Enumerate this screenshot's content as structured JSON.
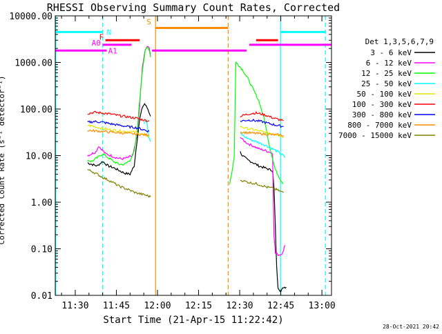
{
  "chart_data": {
    "type": "line",
    "title": "RHESSI Observing Summary Count Rates, Corrected",
    "xlabel": "Start Time (21-Apr-15 11:22:42)",
    "ylabel": "Corrected Count Rate (s⁻¹ detector⁻¹)",
    "x_unit": "minutes after 11:00",
    "xlim": [
      22.7,
      123.5
    ],
    "ylim": [
      0.01,
      10000
    ],
    "y_scale": "log",
    "x_ticks": [
      {
        "v": 30,
        "label": "11:30"
      },
      {
        "v": 45,
        "label": "11:45"
      },
      {
        "v": 60,
        "label": "12:00"
      },
      {
        "v": 75,
        "label": "12:15"
      },
      {
        "v": 90,
        "label": "12:30"
      },
      {
        "v": 105,
        "label": "12:45"
      },
      {
        "v": 120,
        "label": "13:00"
      }
    ],
    "y_ticks": [
      {
        "v": 10000,
        "label": "10000.00"
      },
      {
        "v": 1000,
        "label": "1000.00"
      },
      {
        "v": 100,
        "label": "100.00"
      },
      {
        "v": 10,
        "label": "10.00"
      },
      {
        "v": 1,
        "label": "1.00"
      },
      {
        "v": 0.1,
        "label": "0.10"
      },
      {
        "v": 0.01,
        "label": "0.01"
      }
    ],
    "legend": {
      "position": "right",
      "header": "Det 1,3,5,6,7,9"
    },
    "series": [
      {
        "name": "3 - 6 keV",
        "color": "#000000",
        "segments": [
          [
            [
              34.5,
              7
            ],
            [
              36,
              6.5
            ],
            [
              38,
              6
            ],
            [
              40,
              7.5
            ],
            [
              42,
              6
            ],
            [
              44,
              5.5
            ],
            [
              46,
              4.8
            ],
            [
              48,
              4.2
            ],
            [
              50,
              4
            ],
            [
              51.5,
              6
            ],
            [
              52.5,
              20
            ],
            [
              53.5,
              60
            ],
            [
              54.5,
              110
            ],
            [
              55.3,
              130
            ],
            [
              56.5,
              100
            ],
            [
              57.5,
              70
            ]
          ],
          [
            [
              90.2,
              12
            ],
            [
              91,
              10
            ],
            [
              93,
              8
            ],
            [
              95,
              7
            ],
            [
              97,
              6
            ],
            [
              99,
              5.5
            ],
            [
              101,
              5
            ],
            [
              102,
              4.8
            ],
            [
              102.5,
              2
            ],
            [
              103,
              0.3
            ],
            [
              103.5,
              0.04
            ],
            [
              104,
              0.015
            ],
            [
              105,
              0.012
            ],
            [
              106,
              0.015
            ],
            [
              107,
              0.015
            ]
          ]
        ]
      },
      {
        "name": "6 - 12 keV",
        "color": "#ff00ff",
        "segments": [
          [
            [
              34.5,
              10
            ],
            [
              36,
              11
            ],
            [
              37.5,
              12
            ],
            [
              38.5,
              16
            ],
            [
              39.5,
              14
            ],
            [
              41,
              11
            ],
            [
              43,
              10
            ],
            [
              45,
              9
            ],
            [
              47,
              8.5
            ],
            [
              49,
              9
            ],
            [
              51,
              10
            ],
            [
              52.5,
              25
            ],
            [
              53.5,
              120
            ],
            [
              54.5,
              800
            ],
            [
              55.5,
              1800
            ],
            [
              56.2,
              2200
            ],
            [
              57,
              2000
            ],
            [
              57.5,
              1500
            ]
          ],
          [
            [
              90.2,
              25
            ],
            [
              91,
              22
            ],
            [
              93,
              18
            ],
            [
              95,
              16
            ],
            [
              97,
              14
            ],
            [
              99,
              13
            ],
            [
              101,
              12
            ],
            [
              102,
              11
            ],
            [
              102.5,
              0.2
            ],
            [
              103,
              0.08
            ],
            [
              104,
              0.075
            ],
            [
              105,
              0.075
            ],
            [
              106,
              0.09
            ],
            [
              106.5,
              0.12
            ]
          ]
        ]
      },
      {
        "name": "12 - 25 keV",
        "color": "#00ff00",
        "segments": [
          [
            [
              34.5,
              8
            ],
            [
              36,
              7.5
            ],
            [
              38,
              9
            ],
            [
              40,
              11
            ],
            [
              42,
              9
            ],
            [
              44,
              7.5
            ],
            [
              46,
              6.5
            ],
            [
              48,
              6.5
            ],
            [
              50,
              8
            ],
            [
              51.5,
              12
            ],
            [
              52.5,
              30
            ],
            [
              53.5,
              150
            ],
            [
              54.5,
              700
            ],
            [
              55.5,
              1700
            ],
            [
              56.2,
              2100
            ],
            [
              57,
              1900
            ],
            [
              57.5,
              1300
            ]
          ],
          [
            [
              86.3,
              2.5
            ],
            [
              87,
              4
            ],
            [
              88,
              9
            ],
            [
              88.6,
              1000
            ],
            [
              89.5,
              900
            ],
            [
              91,
              700
            ],
            [
              93,
              450
            ],
            [
              95,
              260
            ],
            [
              97,
              150
            ],
            [
              99,
              60
            ],
            [
              101,
              15
            ],
            [
              103,
              5
            ],
            [
              105,
              3
            ],
            [
              106,
              2.5
            ]
          ]
        ]
      },
      {
        "name": "25 - 50 keV",
        "color": "#00ffff",
        "segments": [
          [
            [
              55,
              50
            ],
            [
              56,
              60
            ],
            [
              56.8,
              25
            ],
            [
              57.5,
              20
            ]
          ],
          [
            [
              90.2,
              30
            ],
            [
              92,
              25
            ],
            [
              94,
              22
            ],
            [
              96,
              20
            ],
            [
              98,
              18
            ],
            [
              100,
              16
            ],
            [
              102,
              14
            ],
            [
              104,
              12
            ],
            [
              106,
              10
            ],
            [
              106.5,
              9
            ]
          ]
        ]
      },
      {
        "name": "50 - 100 keV",
        "color": "#e6e600",
        "segments": [
          [
            [
              34.5,
              45
            ],
            [
              37,
              42
            ],
            [
              40,
              38
            ],
            [
              43,
              36
            ],
            [
              46,
              34
            ],
            [
              49,
              33
            ],
            [
              52,
              32
            ],
            [
              55,
              28
            ],
            [
              57,
              26
            ]
          ],
          [
            [
              90.2,
              42
            ],
            [
              93,
              38
            ],
            [
              96,
              35
            ],
            [
              99,
              32
            ],
            [
              102,
              30
            ],
            [
              104,
              28
            ],
            [
              106,
              25
            ]
          ]
        ]
      },
      {
        "name": "100 - 300 keV",
        "color": "#ff0000",
        "segments": [
          [
            [
              34.5,
              80
            ],
            [
              37,
              85
            ],
            [
              40,
              82
            ],
            [
              43,
              78
            ],
            [
              46,
              72
            ],
            [
              49,
              68
            ],
            [
              52,
              64
            ],
            [
              55,
              58
            ],
            [
              57,
              55
            ]
          ],
          [
            [
              90.2,
              70
            ],
            [
              92,
              75
            ],
            [
              94,
              80
            ],
            [
              96,
              82
            ],
            [
              98,
              78
            ],
            [
              100,
              72
            ],
            [
              102,
              65
            ],
            [
              104,
              60
            ],
            [
              106,
              56
            ]
          ]
        ]
      },
      {
        "name": "300 - 800 keV",
        "color": "#0000ff",
        "segments": [
          [
            [
              34.5,
              52
            ],
            [
              37,
              54
            ],
            [
              40,
              52
            ],
            [
              43,
              48
            ],
            [
              46,
              45
            ],
            [
              49,
              42
            ],
            [
              52,
              40
            ],
            [
              55,
              36
            ],
            [
              57,
              33
            ]
          ],
          [
            [
              90.2,
              55
            ],
            [
              92,
              57
            ],
            [
              94,
              58
            ],
            [
              96,
              56
            ],
            [
              98,
              54
            ],
            [
              100,
              50
            ],
            [
              102,
              47
            ],
            [
              104,
              44
            ],
            [
              106,
              42
            ]
          ]
        ]
      },
      {
        "name": "800 - 7000 keV",
        "color": "#ff8c00",
        "segments": [
          [
            [
              34.5,
              35
            ],
            [
              37,
              34
            ],
            [
              40,
              33
            ],
            [
              43,
              32
            ],
            [
              46,
              31
            ],
            [
              49,
              30
            ],
            [
              52,
              29
            ],
            [
              55,
              28
            ],
            [
              57,
              28
            ]
          ],
          [
            [
              90.2,
              32
            ],
            [
              93,
              31
            ],
            [
              96,
              30
            ],
            [
              99,
              29
            ],
            [
              102,
              28
            ],
            [
              104,
              28
            ],
            [
              106,
              27
            ]
          ]
        ]
      },
      {
        "name": "7000 - 15000 keV",
        "color": "#808000",
        "segments": [
          [
            [
              34.5,
              5
            ],
            [
              36,
              4.6
            ],
            [
              38,
              4
            ],
            [
              40,
              3.4
            ],
            [
              42,
              3
            ],
            [
              44,
              2.6
            ],
            [
              46,
              2.2
            ],
            [
              48,
              2.0
            ],
            [
              50,
              1.8
            ],
            [
              52,
              1.6
            ],
            [
              54,
              1.5
            ],
            [
              56,
              1.4
            ],
            [
              57.5,
              1.3
            ]
          ],
          [
            [
              90.2,
              3
            ],
            [
              92,
              2.8
            ],
            [
              94,
              2.6
            ],
            [
              96,
              2.5
            ],
            [
              98,
              2.3
            ],
            [
              100,
              2.1
            ],
            [
              102,
              2.0
            ],
            [
              104,
              1.8
            ],
            [
              106,
              1.6
            ]
          ]
        ]
      }
    ],
    "vertical_lines": [
      {
        "x": 22.9,
        "color": "#00ffff",
        "style": "solid"
      },
      {
        "x": 40.0,
        "color": "#00ffff",
        "style": "dashed"
      },
      {
        "x": 59.3,
        "color": "#ff8c00",
        "style": "solid"
      },
      {
        "x": 85.8,
        "color": "#ff8c00",
        "style": "dashed"
      },
      {
        "x": 104.9,
        "color": "#00ffff",
        "style": "solid"
      },
      {
        "x": 121.3,
        "color": "#00ffff",
        "style": "dashed"
      }
    ],
    "flag_bars": [
      {
        "label": "N",
        "color": "#00ffff",
        "y": 4500,
        "segments": [
          [
            22.7,
            40.0
          ],
          [
            104.9,
            121.3
          ]
        ]
      },
      {
        "label": "S",
        "color": "#ff8c00",
        "y": 5500,
        "segments": [
          [
            59.3,
            85.8
          ]
        ]
      },
      {
        "label": "F",
        "color": "#ff0000",
        "y": 3000,
        "segments": [
          [
            41.0,
            53.5
          ],
          [
            96.0,
            104.0
          ]
        ]
      },
      {
        "label": "A0",
        "color": "#ff00ff",
        "y": 2400,
        "segments": [
          [
            40.0,
            50.5
          ],
          [
            93.5,
            123.5
          ]
        ]
      },
      {
        "label": "A1",
        "color": "#ff00ff",
        "y": 1800,
        "segments": [
          [
            22.7,
            41.5
          ],
          [
            58.0,
            92.5
          ]
        ]
      }
    ]
  },
  "timestamp": "28-Oct-2021 20:42"
}
